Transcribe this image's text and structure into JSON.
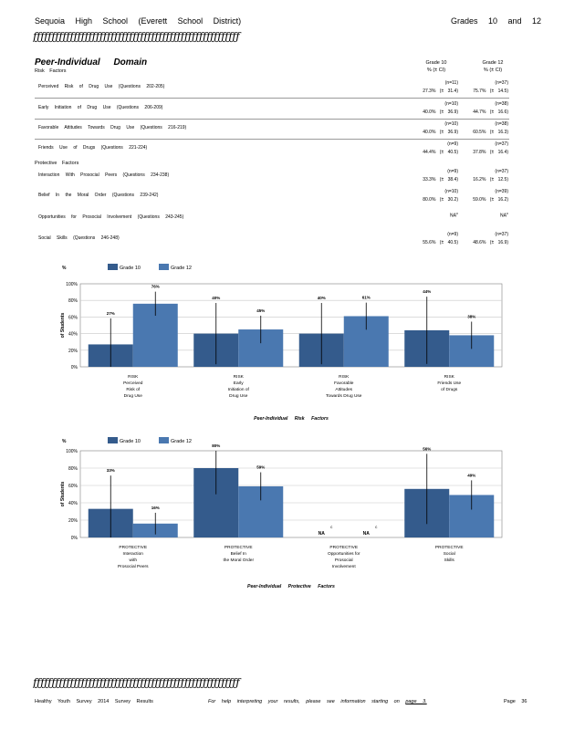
{
  "header": {
    "school": "Sequoia High School (Everett School District)",
    "grades": "Grades 10 and 12"
  },
  "ornament": "ƒƒƒƒƒƒƒƒƒƒƒƒƒƒƒƒƒƒƒƒƒƒƒƒƒƒƒƒƒƒƒƒƒƒƒƒƒƒƒƒƒƒƒƒƒƒƒƒƒƒƒƒƒƒƒƒ",
  "domain_title": "Peer-Individual Domain",
  "columns": [
    {
      "grade": "Grade 10",
      "sub": "% (± CI)"
    },
    {
      "grade": "Grade 12",
      "sub": "% (± CI)"
    }
  ],
  "risk_heading": "Risk Factors",
  "protective_heading": "Protective Factors",
  "risk_rows": [
    {
      "label": "Perceived Risk of Drug Use (Questions 202-205)",
      "g10_n": "(n=11)",
      "g10": "27.3% (± 31.4)",
      "g12_n": "(n=37)",
      "g12": "75.7% (± 14.5)"
    },
    {
      "label": "Early Initiation of Drug Use (Questions 206-209)",
      "g10_n": "(n=10)",
      "g10": "40.0% (± 36.9)",
      "g12_n": "(n=38)",
      "g12": "44.7% (± 16.6)"
    },
    {
      "label": "Favorable Attitudes Towards Drug Use (Questions 216-219)",
      "g10_n": "(n=10)",
      "g10": "40.0% (± 36.9)",
      "g12_n": "(n=38)",
      "g12": "60.5% (± 16.3)"
    },
    {
      "label": "Friends Use of Drugs (Questions 221-224)",
      "g10_n": "(n=9)",
      "g10": "44.4% (± 40.5)",
      "g12_n": "(n=37)",
      "g12": "37.8% (± 16.4)"
    }
  ],
  "protective_rows": [
    {
      "label": "Interaction With Prosocial Peers (Questions 234-238)",
      "g10_n": "(n=9)",
      "g10": "33.3% (± 38.4)",
      "g12_n": "(n=37)",
      "g12": "16.2% (± 12.5)"
    },
    {
      "label": "Belief In the Moral Order (Questions 239-242)",
      "g10_n": "(n=10)",
      "g10": "80.0% (± 30.2)",
      "g12_n": "(n=39)",
      "g12": "59.0% (± 16.2)"
    },
    {
      "label": "Opportunities for Prosocial Involvement (Questions 243-245)",
      "g10_n": "NA",
      "g10_sup": "c",
      "g10": "",
      "g12_n": "NA",
      "g12_sup": "c",
      "g12": ""
    },
    {
      "label": "Social Skills (Questions 246-248)",
      "g10_n": "(n=9)",
      "g10": "55.6% (± 40.5)",
      "g12_n": "(n=37)",
      "g12": "48.6% (± 16.9)"
    }
  ],
  "chart_data": [
    {
      "type": "bar",
      "title": "",
      "xlabel": "Peer-Individual Risk Factors",
      "ylabel": "% of Students",
      "ylim": [
        0,
        100
      ],
      "yticks": [
        "0%",
        "20%",
        "40%",
        "60%",
        "80%",
        "100%"
      ],
      "legend_position": "top-left",
      "categories": [
        [
          "RISK",
          "Perceived",
          "Risk of",
          "Drug Use"
        ],
        [
          "RISK",
          "Early",
          "Initiation of",
          "Drug Use"
        ],
        [
          "RISK",
          "Favorable",
          "Attitudes",
          "Towards Drug Use"
        ],
        [
          "RISK",
          "Friends Use",
          "of Drugs"
        ]
      ],
      "series": [
        {
          "name": "Grade 10",
          "color": "#345b8c",
          "values": [
            27,
            40,
            40,
            44
          ],
          "ci": [
            31.4,
            36.9,
            36.9,
            40.5
          ],
          "labels": [
            "27%",
            "40%",
            "40%",
            "44%"
          ]
        },
        {
          "name": "Grade 12",
          "color": "#4a78b0",
          "values": [
            76,
            45,
            61,
            38
          ],
          "ci": [
            14.5,
            16.6,
            16.3,
            16.4
          ],
          "labels": [
            "76%",
            "45%",
            "61%",
            "38%"
          ]
        }
      ]
    },
    {
      "type": "bar",
      "title": "",
      "xlabel": "Peer-Individual Protective Factors",
      "ylabel": "% of Students",
      "ylim": [
        0,
        100
      ],
      "yticks": [
        "0%",
        "20%",
        "40%",
        "60%",
        "80%",
        "100%"
      ],
      "legend_position": "top-left",
      "categories": [
        [
          "PROTECTIVE",
          "Interaction",
          "with",
          "Prosocial Peers"
        ],
        [
          "PROTECTIVE",
          "Belief In",
          "the Moral Order"
        ],
        [
          "PROTECTIVE",
          "Opportunities for",
          "Prosocial",
          "Involvement"
        ],
        [
          "PROTECTIVE",
          "Social",
          "Skills"
        ]
      ],
      "series": [
        {
          "name": "Grade 10",
          "color": "#345b8c",
          "values": [
            33,
            80,
            null,
            56
          ],
          "ci": [
            38.4,
            30.2,
            null,
            40.5
          ],
          "labels": [
            "33%",
            "80%",
            "NA",
            "56%"
          ]
        },
        {
          "name": "Grade 12",
          "color": "#4a78b0",
          "values": [
            16,
            59,
            null,
            49
          ],
          "ci": [
            12.5,
            16.2,
            null,
            16.9
          ],
          "labels": [
            "16%",
            "59%",
            "NA",
            "49%"
          ]
        }
      ],
      "na_superscript": "c"
    }
  ],
  "footer": {
    "left": "Healthy Youth Survey 2014 Survey Results",
    "middle": "For help interpreting your results, please see information starting on",
    "link": "page 3.",
    "right": "Page 36"
  }
}
